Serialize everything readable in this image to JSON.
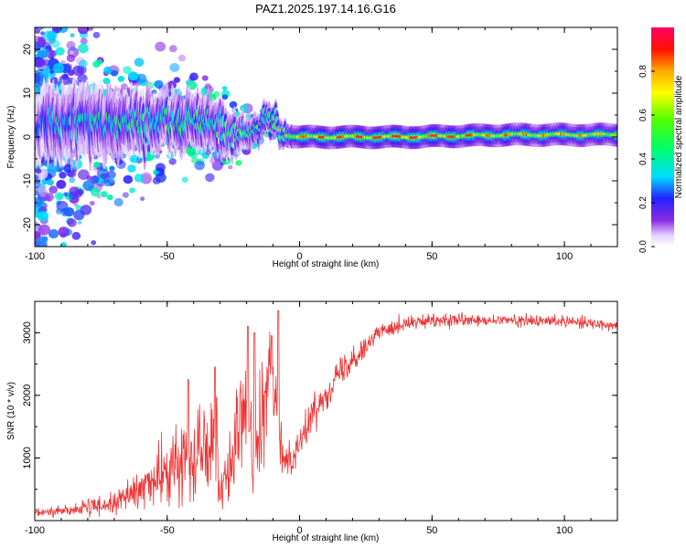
{
  "title": "PAZ1.2025.197.14.16.G16",
  "chart_data": [
    {
      "type": "heatmap",
      "xlabel": "Height of straight line (km)",
      "ylabel": "Frequency (Hz)",
      "xlim": [
        -100,
        120
      ],
      "ylim": [
        -25,
        25
      ],
      "xticks": [
        -100,
        -50,
        0,
        50,
        100
      ],
      "yticks": [
        -20,
        -10,
        0,
        10,
        20
      ],
      "colorbar": {
        "label": "Normalized spectral amplitude",
        "range": [
          0,
          1
        ],
        "ticks": [
          "0.0",
          "0.2",
          "0.4",
          "0.6",
          "0.8"
        ],
        "colormap": "rainbow"
      },
      "ridge": [
        {
          "x": -100,
          "f_center": 3,
          "spread": 20,
          "amplitude": 0.35
        },
        {
          "x": -80,
          "f_center": 3,
          "spread": 12,
          "amplitude": 0.45
        },
        {
          "x": -60,
          "f_center": 3,
          "spread": 8,
          "amplitude": 0.5
        },
        {
          "x": -45,
          "f_center": 4,
          "spread": 8,
          "amplitude": 0.5
        },
        {
          "x": -30,
          "f_center": 2,
          "spread": 6,
          "amplitude": 0.5
        },
        {
          "x": -20,
          "f_center": 1,
          "spread": 3,
          "amplitude": 0.55
        },
        {
          "x": -12,
          "f_center": 4,
          "spread": 2,
          "amplitude": 0.55
        },
        {
          "x": -5,
          "f_center": 0.5,
          "spread": 1.5,
          "amplitude": 0.7
        },
        {
          "x": 0,
          "f_center": 0,
          "spread": 1.2,
          "amplitude": 0.9
        },
        {
          "x": 40,
          "f_center": 0,
          "spread": 1.2,
          "amplitude": 1.0
        },
        {
          "x": 80,
          "f_center": 0.5,
          "spread": 1.2,
          "amplitude": 0.85
        },
        {
          "x": 120,
          "f_center": 0.5,
          "spread": 1.2,
          "amplitude": 0.8
        }
      ]
    },
    {
      "type": "line",
      "xlabel": "Height of straight line (km)",
      "ylabel": "SNR (10 * v/v)",
      "xlim": [
        -100,
        120
      ],
      "ylim": [
        0,
        3500
      ],
      "xticks": [
        -100,
        -50,
        0,
        50,
        100
      ],
      "yticks": [
        1000,
        2000,
        3000
      ],
      "color": "#ee3333",
      "x": [
        -100,
        -90,
        -80,
        -70,
        -65,
        -60,
        -55,
        -50,
        -45,
        -40,
        -35,
        -32,
        -30,
        -28,
        -25,
        -22,
        -20,
        -18,
        -15,
        -12,
        -10,
        -8,
        -5,
        -2,
        0,
        5,
        10,
        15,
        20,
        25,
        30,
        35,
        40,
        50,
        60,
        70,
        80,
        90,
        100,
        110,
        120
      ],
      "y": [
        120,
        160,
        200,
        280,
        380,
        500,
        650,
        780,
        900,
        1100,
        1300,
        1450,
        550,
        700,
        1100,
        1600,
        1800,
        1100,
        1300,
        2100,
        2400,
        1300,
        950,
        1100,
        1250,
        1700,
        2050,
        2350,
        2600,
        2800,
        3000,
        3100,
        3150,
        3180,
        3200,
        3180,
        3200,
        3180,
        3200,
        3150,
        3120
      ],
      "noise": [
        60,
        80,
        110,
        160,
        220,
        300,
        380,
        450,
        550,
        650,
        700,
        750,
        500,
        550,
        650,
        800,
        900,
        700,
        700,
        800,
        650,
        450,
        280,
        250,
        220,
        230,
        230,
        210,
        200,
        180,
        150,
        130,
        120,
        100,
        90,
        90,
        90,
        90,
        90,
        90,
        90
      ],
      "spikes": [
        {
          "x": -42,
          "y": 2250
        },
        {
          "x": -32,
          "y": 2450
        },
        {
          "x": -19.5,
          "y": 3100
        },
        {
          "x": -17,
          "y": 3000
        },
        {
          "x": -8,
          "y": 3350
        },
        {
          "x": -10.5,
          "y": 2950
        }
      ]
    }
  ]
}
